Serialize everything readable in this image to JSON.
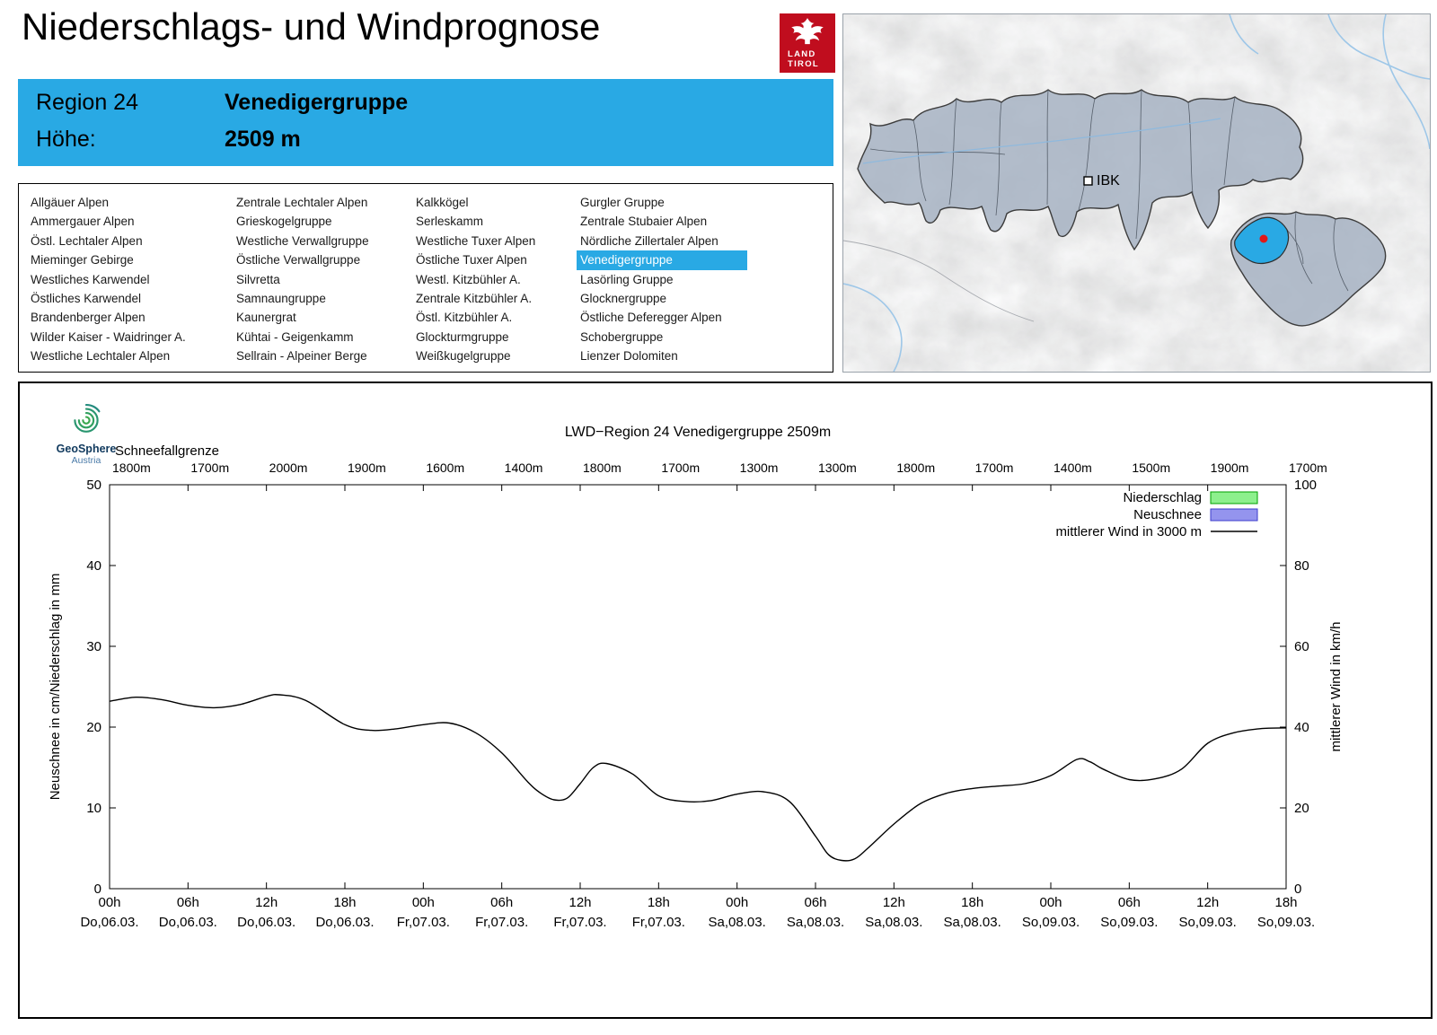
{
  "page": {
    "title": "Niederschlags- und Windprognose"
  },
  "colors": {
    "accent_blue": "#29a9e4",
    "logo_red": "#c00d1e",
    "region_fill": "#a7b3c3"
  },
  "logo_land_tirol": {
    "line1": "LAND",
    "line2": "TIROL"
  },
  "region_header": {
    "region_label": "Region 24",
    "region_name": "Venedigergruppe",
    "altitude_label": "Höhe:",
    "altitude_value": "2509 m"
  },
  "map": {
    "city_label": "IBK"
  },
  "geosphere_logo": {
    "line1": "GeoSphere",
    "line2": "Austria"
  },
  "region_list": {
    "selected": "Venedigergruppe",
    "columns": [
      [
        "Allgäuer Alpen",
        "Ammergauer Alpen",
        "Östl. Lechtaler Alpen",
        "Mieminger Gebirge",
        "Westliches Karwendel",
        "Östliches Karwendel",
        "Brandenberger Alpen",
        "Wilder Kaiser - Waidringer A.",
        "Westliche Lechtaler Alpen"
      ],
      [
        "Zentrale Lechtaler Alpen",
        "Grieskogelgruppe",
        "Westliche Verwallgruppe",
        "Östliche Verwallgruppe",
        "Silvretta",
        "Samnaungruppe",
        "Kaunergrat",
        "Kühtai - Geigenkamm",
        "Sellrain - Alpeiner Berge"
      ],
      [
        "Kalkkögel",
        "Serleskamm",
        "Westliche Tuxer Alpen",
        "Östliche Tuxer Alpen",
        "Westl. Kitzbühler A.",
        "Zentrale Kitzbühler A.",
        "Östl. Kitzbühler A.",
        "Glockturmgruppe",
        "Weißkugelgruppe"
      ],
      [
        "Gurgler Gruppe",
        "Zentrale Stubaier Alpen",
        "Nördliche Zillertaler Alpen",
        "Venedigergruppe",
        "Lasörling Gruppe",
        "Glocknergruppe",
        "Östliche Deferegger Alpen",
        "Schobergruppe",
        "Lienzer Dolomiten"
      ]
    ]
  },
  "chart_data": {
    "type": "line",
    "title": "LWD−Region 24 Venedigergruppe 2509m",
    "snowline_label": "Schneefallgrenze",
    "snowline_values": [
      "1800m",
      "1700m",
      "2000m",
      "1900m",
      "1600m",
      "1400m",
      "1800m",
      "1700m",
      "1300m",
      "1300m",
      "1800m",
      "1700m",
      "1400m",
      "1500m",
      "1900m",
      "1700m"
    ],
    "ylabel_left": "Neuschnee in cm/Niederschlag in mm",
    "ylabel_right": "mittlerer Wind in km/h",
    "ylim_left": [
      0,
      50
    ],
    "ylim_right": [
      0,
      100
    ],
    "yticks_left": [
      0,
      10,
      20,
      30,
      40,
      50
    ],
    "yticks_right": [
      0,
      20,
      40,
      60,
      80,
      100
    ],
    "x_hours_range": [
      0,
      90
    ],
    "xtick_hours": [
      0,
      6,
      12,
      18,
      24,
      30,
      36,
      42,
      48,
      54,
      60,
      66,
      72,
      78,
      84,
      90
    ],
    "xtick_labels_hour": [
      "00h",
      "06h",
      "12h",
      "18h",
      "00h",
      "06h",
      "12h",
      "18h",
      "00h",
      "06h",
      "12h",
      "18h",
      "00h",
      "06h",
      "12h",
      "18h"
    ],
    "xtick_labels_date": [
      "Do,06.03.",
      "Do,06.03.",
      "Do,06.03.",
      "Do,06.03.",
      "Fr,07.03.",
      "Fr,07.03.",
      "Fr,07.03.",
      "Fr,07.03.",
      "Sa,08.03.",
      "Sa,08.03.",
      "Sa,08.03.",
      "Sa,08.03.",
      "So,09.03.",
      "So,09.03.",
      "So,09.03.",
      "So,09.03."
    ],
    "legend": [
      {
        "label": "Niederschlag",
        "type": "box",
        "fill": "#8df08d",
        "stroke": "#00a000"
      },
      {
        "label": "Neuschnee",
        "type": "box",
        "fill": "#9494ee",
        "stroke": "#3c3ccc"
      },
      {
        "label": "mittlerer Wind in 3000 m",
        "type": "line",
        "stroke": "#000000"
      }
    ],
    "precipitation_mm": [],
    "new_snow_cm": [],
    "series": [
      {
        "name": "mittlerer Wind in 3000 m",
        "axis": "right",
        "unit": "km/h",
        "x_hours": [
          0,
          2,
          4,
          6,
          8,
          10,
          12,
          13,
          15,
          18,
          20,
          22,
          24,
          26,
          28,
          30,
          32,
          33,
          34,
          35,
          36,
          37,
          38,
          40,
          42,
          44,
          46,
          48,
          50,
          52,
          54,
          55,
          56,
          57,
          58,
          60,
          62,
          64,
          66,
          68,
          70,
          72,
          74,
          75,
          76,
          78,
          80,
          82,
          84,
          86,
          88,
          90
        ],
        "values_kmh": [
          46.4,
          47.4,
          46.8,
          45.4,
          44.8,
          45.6,
          47.6,
          48,
          46.6,
          40.6,
          39.2,
          39.6,
          40.6,
          41,
          38.6,
          33.6,
          26.4,
          23.6,
          22,
          22.4,
          26,
          30,
          31,
          28.4,
          23,
          21.6,
          21.8,
          23.4,
          24,
          21.6,
          13,
          8.4,
          7,
          7.4,
          10,
          16,
          21,
          23.6,
          24.8,
          25.4,
          26,
          28,
          32,
          31.4,
          29.6,
          27,
          27.2,
          29.6,
          36,
          38.6,
          39.6,
          39.8
        ]
      }
    ]
  }
}
